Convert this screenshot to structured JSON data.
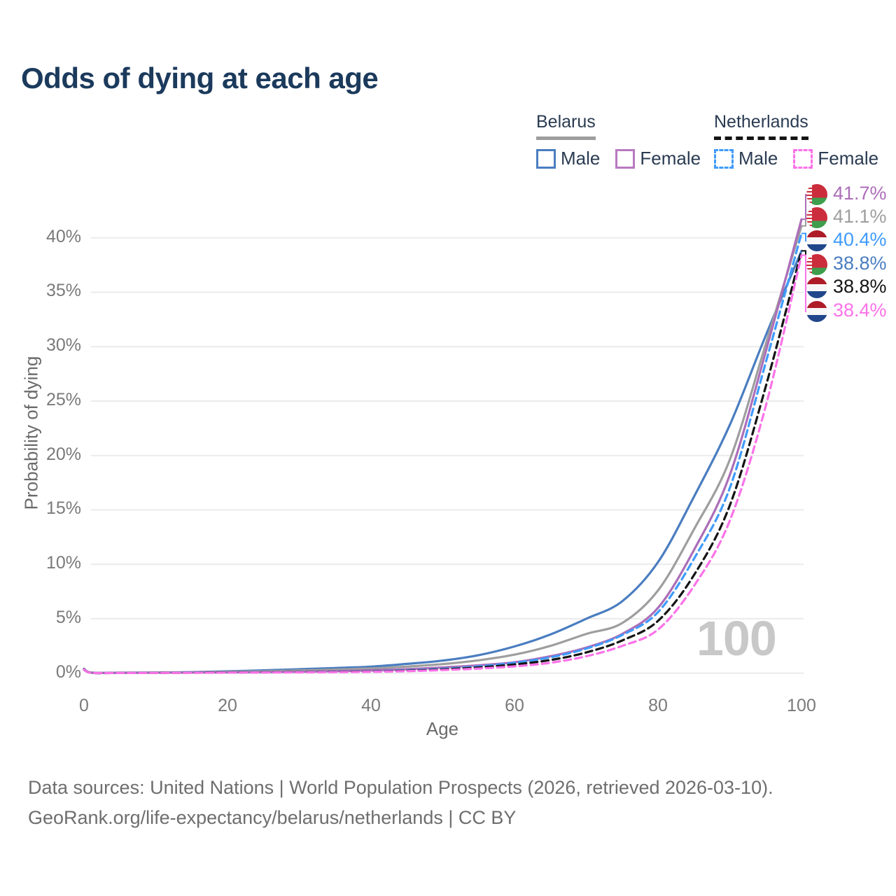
{
  "title": "Odds of dying at each age",
  "watermark": "100",
  "legend": {
    "belarus": {
      "country": "Belarus",
      "male_label": "Male",
      "female_label": "Female"
    },
    "netherlands": {
      "country": "Netherlands",
      "male_label": "Male",
      "female_label": "Female"
    }
  },
  "footer": {
    "line1": "Data sources: United Nations | World Population Prospects (2026, retrieved 2026-03-10).",
    "line2": "GeoRank.org/life-expectancy/belarus/netherlands | CC BY"
  },
  "colors": {
    "title": "#1b3a5c",
    "belarus_male": "#4a7dc0",
    "belarus_total": "#9e9e9e",
    "belarus_female": "#ac6eb8",
    "netherlands_male": "#3f9bfb",
    "netherlands_total": "#141414",
    "netherlands_female": "#fb72e8",
    "gridline": "#ebebeb",
    "watermark": "#c8c8c8"
  },
  "chart_data": {
    "type": "line",
    "title": "Odds of dying at each age",
    "xlabel": "Age",
    "ylabel": "Probability of dying",
    "xlim": [
      0,
      100
    ],
    "ylim": [
      0,
      43
    ],
    "grid": "horizontal",
    "legend_position": "top-right",
    "x_ticks": [
      0,
      20,
      40,
      60,
      80,
      100
    ],
    "y_tick_values": [
      0,
      5,
      10,
      15,
      20,
      25,
      30,
      35,
      40
    ],
    "y_tick_labels": [
      "0%",
      "5%",
      "10%",
      "15%",
      "20%",
      "25%",
      "30%",
      "35%",
      "40%"
    ],
    "ages": [
      0,
      1,
      5,
      10,
      15,
      20,
      25,
      30,
      35,
      40,
      45,
      50,
      55,
      60,
      65,
      70,
      75,
      80,
      85,
      90,
      95,
      100
    ],
    "series": [
      {
        "name": "Belarus Male",
        "country": "Belarus",
        "color": "#4a7dc0",
        "dash": null,
        "end_label": "38.8%",
        "end_row": 3,
        "values": [
          0.35,
          0.05,
          0.04,
          0.05,
          0.09,
          0.17,
          0.26,
          0.36,
          0.47,
          0.6,
          0.85,
          1.15,
          1.65,
          2.45,
          3.55,
          5.0,
          6.6,
          10.2,
          16.2,
          22.8,
          31.0,
          38.8
        ]
      },
      {
        "name": "Belarus",
        "country": "Belarus",
        "color": "#9e9e9e",
        "dash": null,
        "end_label": "41.1%",
        "end_row": 1,
        "values": [
          0.33,
          0.045,
          0.035,
          0.045,
          0.07,
          0.12,
          0.17,
          0.24,
          0.32,
          0.43,
          0.6,
          0.83,
          1.18,
          1.7,
          2.5,
          3.6,
          4.6,
          7.6,
          13.2,
          19.6,
          30.2,
          41.1
        ]
      },
      {
        "name": "Belarus Female",
        "country": "Belarus",
        "color": "#ac6eb8",
        "dash": null,
        "end_label": "41.7%",
        "end_row": 0,
        "values": [
          0.3,
          0.04,
          0.03,
          0.04,
          0.05,
          0.07,
          0.09,
          0.12,
          0.18,
          0.26,
          0.36,
          0.52,
          0.72,
          1.0,
          1.55,
          2.35,
          3.6,
          6.0,
          11.3,
          18.2,
          29.5,
          41.7
        ]
      },
      {
        "name": "Netherlands Male",
        "country": "Netherlands",
        "color": "#3f9bfb",
        "dash": "10 6",
        "end_label": "40.4%",
        "end_row": 2,
        "values": [
          0.4,
          0.035,
          0.02,
          0.025,
          0.05,
          0.07,
          0.08,
          0.1,
          0.13,
          0.17,
          0.26,
          0.4,
          0.62,
          0.95,
          1.45,
          2.25,
          3.5,
          5.6,
          10.5,
          17.0,
          28.5,
          40.4
        ]
      },
      {
        "name": "Netherlands",
        "country": "Netherlands",
        "color": "#141414",
        "dash": "10 6",
        "end_label": "38.8%",
        "end_row": 4,
        "values": [
          0.38,
          0.03,
          0.018,
          0.022,
          0.04,
          0.06,
          0.07,
          0.09,
          0.115,
          0.15,
          0.22,
          0.34,
          0.52,
          0.8,
          1.2,
          1.9,
          3.0,
          4.8,
          9.0,
          15.4,
          26.3,
          38.8
        ]
      },
      {
        "name": "Netherlands Female",
        "country": "Netherlands",
        "color": "#fb72e8",
        "dash": "10 6",
        "end_label": "38.4%",
        "end_row": 5,
        "values": [
          0.35,
          0.03,
          0.015,
          0.018,
          0.03,
          0.045,
          0.055,
          0.07,
          0.09,
          0.12,
          0.18,
          0.28,
          0.42,
          0.62,
          0.95,
          1.55,
          2.5,
          4.0,
          8.0,
          14.0,
          24.5,
          38.4
        ]
      }
    ],
    "end_labels": [
      {
        "flag": "belarus",
        "value": "41.7%",
        "series": "Belarus Female",
        "color": "#ac6eb8"
      },
      {
        "flag": "belarus",
        "value": "41.1%",
        "series": "Belarus",
        "color": "#9e9e9e"
      },
      {
        "flag": "netherlands",
        "value": "40.4%",
        "series": "Netherlands Male",
        "color": "#3f9bfb"
      },
      {
        "flag": "belarus",
        "value": "38.8%",
        "series": "Belarus Male",
        "color": "#4a7dc0"
      },
      {
        "flag": "netherlands",
        "value": "38.8%",
        "series": "Netherlands",
        "color": "#141414"
      },
      {
        "flag": "netherlands",
        "value": "38.4%",
        "series": "Netherlands Female",
        "color": "#fb72e8"
      }
    ]
  }
}
